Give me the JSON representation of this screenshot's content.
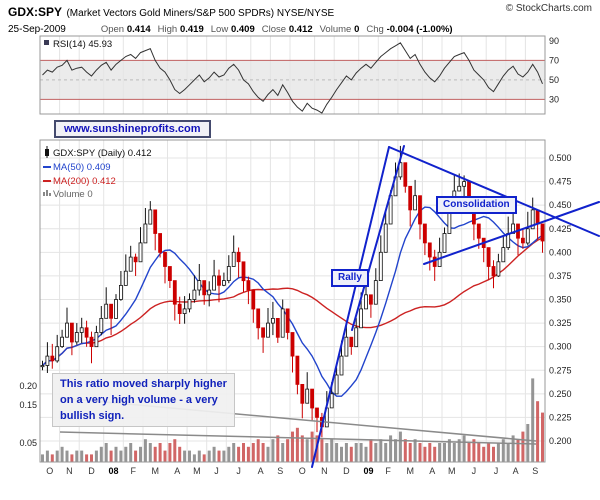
{
  "header": {
    "symbol": "GDX:SPY",
    "description": "(Market Vectors Gold Miners/S&P 500 SPDRs) NYSE/NYSE",
    "copyright": "© StockCharts.com",
    "date": "25-Sep-2009",
    "quote": [
      {
        "label": "Open",
        "value": "0.414"
      },
      {
        "label": "High",
        "value": "0.419"
      },
      {
        "label": "Low",
        "value": "0.409"
      },
      {
        "label": "Close",
        "value": "0.412"
      },
      {
        "label": "Volume",
        "value": "0"
      },
      {
        "label": "Chg",
        "value": "-0.004 (-1.00%)"
      }
    ]
  },
  "annotations": {
    "watermark": "www.sunshineprofits.com",
    "rally": "Rally",
    "consolidation": "Consolidation",
    "bullish_note": [
      "This ratio moved sharply higher",
      "on a very high volume - a very",
      "bullish sign."
    ]
  },
  "colors": {
    "annotation_blue": "#1122cc",
    "ma50": "#2244cc",
    "ma200": "#cc2222",
    "candle_up": "#111111",
    "candle_down": "#cc0000",
    "volume_up": "#8a8a8a",
    "volume_down": "#cc5555",
    "grid": "#e4e4e4",
    "band": "#ebebeb",
    "ob_os_line": "#c06060"
  },
  "chart_data": [
    {
      "type": "line",
      "title": "RSI(14) 45.93",
      "ylim": [
        15,
        95
      ],
      "yticks": [
        30,
        50,
        70,
        90
      ],
      "overbought": 70,
      "oversold": 30,
      "midline": 50,
      "values": [
        55,
        60,
        58,
        63,
        65,
        70,
        60,
        62,
        63,
        58,
        54,
        60,
        65,
        68,
        60,
        66,
        70,
        74,
        76,
        72,
        78,
        80,
        82,
        70,
        62,
        58,
        50,
        40,
        36,
        40,
        45,
        50,
        55,
        48,
        52,
        58,
        53,
        55,
        62,
        66,
        60,
        50,
        46,
        38,
        32,
        28,
        35,
        40,
        34,
        45,
        37,
        28,
        22,
        18,
        26,
        21,
        19,
        16,
        25,
        32,
        40,
        47,
        54,
        50,
        57,
        62,
        66,
        62,
        68,
        74,
        78,
        82,
        85,
        88,
        80,
        72,
        76,
        66,
        58,
        52,
        48,
        54,
        62,
        68,
        74,
        76,
        78,
        70,
        60,
        55,
        50,
        42,
        38,
        46,
        54,
        60,
        64,
        56,
        53,
        58,
        66,
        58,
        46
      ]
    },
    {
      "type": "candlestick",
      "legend": [
        "GDX:SPY (Daily) 0.412",
        "MA(50) 0.409",
        "MA(200) 0.412",
        "Volume 0"
      ],
      "x_labels": [
        "O",
        "N",
        "D",
        "08",
        "F",
        "M",
        "A",
        "M",
        "J",
        "J",
        "A",
        "S",
        "O",
        "N",
        "D",
        "09",
        "F",
        "M",
        "A",
        "M",
        "J",
        "J",
        "A",
        "S"
      ],
      "month_weeks": [
        4,
        4,
        5,
        4,
        4,
        5,
        4,
        4,
        4,
        5,
        4,
        4,
        5,
        4,
        5,
        4,
        4,
        5,
        4,
        4,
        5,
        4,
        4,
        4
      ],
      "ylim": [
        0.19,
        0.52
      ],
      "yticks_right": [
        "0.500",
        "0.475",
        "0.450",
        "0.425",
        "0.400",
        "0.375",
        "0.350",
        "0.325",
        "0.300",
        "0.275",
        "0.250",
        "0.225",
        "0.200"
      ],
      "yticks_left_volume": [
        "0.20",
        "0.15",
        "0.05"
      ],
      "close": [
        0.28,
        0.29,
        0.285,
        0.3,
        0.31,
        0.325,
        0.305,
        0.315,
        0.32,
        0.31,
        0.3,
        0.315,
        0.33,
        0.345,
        0.33,
        0.35,
        0.365,
        0.38,
        0.395,
        0.39,
        0.41,
        0.43,
        0.445,
        0.42,
        0.4,
        0.385,
        0.37,
        0.345,
        0.335,
        0.34,
        0.35,
        0.36,
        0.37,
        0.355,
        0.36,
        0.375,
        0.365,
        0.37,
        0.385,
        0.4,
        0.39,
        0.37,
        0.36,
        0.34,
        0.32,
        0.31,
        0.325,
        0.33,
        0.31,
        0.34,
        0.315,
        0.29,
        0.26,
        0.24,
        0.255,
        0.235,
        0.225,
        0.215,
        0.235,
        0.25,
        0.27,
        0.29,
        0.31,
        0.3,
        0.32,
        0.34,
        0.355,
        0.345,
        0.37,
        0.4,
        0.43,
        0.46,
        0.48,
        0.495,
        0.47,
        0.445,
        0.46,
        0.43,
        0.41,
        0.395,
        0.385,
        0.4,
        0.42,
        0.445,
        0.465,
        0.47,
        0.475,
        0.455,
        0.43,
        0.415,
        0.405,
        0.385,
        0.375,
        0.39,
        0.405,
        0.42,
        0.43,
        0.415,
        0.41,
        0.425,
        0.445,
        0.43,
        0.412
      ],
      "volume": [
        0.02,
        0.03,
        0.02,
        0.03,
        0.04,
        0.03,
        0.02,
        0.03,
        0.03,
        0.02,
        0.02,
        0.03,
        0.04,
        0.05,
        0.03,
        0.04,
        0.03,
        0.04,
        0.05,
        0.03,
        0.04,
        0.06,
        0.05,
        0.04,
        0.05,
        0.03,
        0.05,
        0.06,
        0.04,
        0.03,
        0.03,
        0.02,
        0.03,
        0.02,
        0.03,
        0.04,
        0.03,
        0.03,
        0.04,
        0.05,
        0.04,
        0.05,
        0.04,
        0.05,
        0.06,
        0.05,
        0.04,
        0.06,
        0.07,
        0.05,
        0.06,
        0.08,
        0.09,
        0.07,
        0.06,
        0.08,
        0.07,
        0.06,
        0.05,
        0.06,
        0.05,
        0.04,
        0.05,
        0.04,
        0.05,
        0.05,
        0.04,
        0.06,
        0.05,
        0.06,
        0.05,
        0.07,
        0.06,
        0.08,
        0.06,
        0.05,
        0.06,
        0.05,
        0.04,
        0.05,
        0.04,
        0.05,
        0.05,
        0.06,
        0.05,
        0.06,
        0.07,
        0.05,
        0.06,
        0.05,
        0.04,
        0.05,
        0.04,
        0.05,
        0.06,
        0.05,
        0.07,
        0.06,
        0.08,
        0.1,
        0.22,
        0.16,
        0.13
      ]
    }
  ]
}
